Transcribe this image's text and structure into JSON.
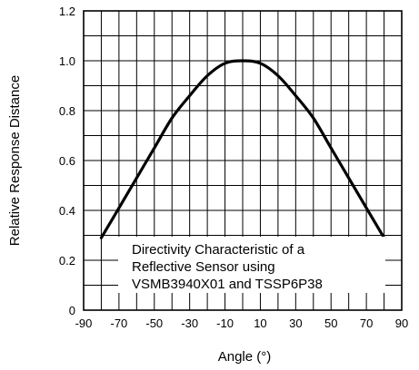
{
  "chart_data": {
    "type": "line",
    "title": "",
    "xlabel": "Angle (°)",
    "ylabel": "Relative Response Distance",
    "xlim": [
      -90,
      90
    ],
    "ylim": [
      0,
      1.2
    ],
    "x_ticks": [
      "-90",
      "-70",
      "-50",
      "-30",
      "-10",
      "10",
      "30",
      "50",
      "70",
      "90"
    ],
    "y_ticks": [
      "0",
      "0.2",
      "0.4",
      "0.6",
      "0.8",
      "1.0",
      "1.2"
    ],
    "grid": true,
    "annotation": [
      "Directivity Characteristic of a",
      "Reflective Sensor using",
      "VSMB3940X01 and TSSP6P38"
    ],
    "series": [
      {
        "x": [
          -80,
          -70,
          -60,
          -50,
          -40,
          -30,
          -20,
          -10,
          0,
          10,
          20,
          30,
          40,
          50,
          60,
          70,
          80
        ],
        "y": [
          0.29,
          0.41,
          0.53,
          0.65,
          0.77,
          0.86,
          0.94,
          0.99,
          1.0,
          0.99,
          0.94,
          0.86,
          0.77,
          0.65,
          0.53,
          0.41,
          0.29
        ]
      }
    ]
  }
}
